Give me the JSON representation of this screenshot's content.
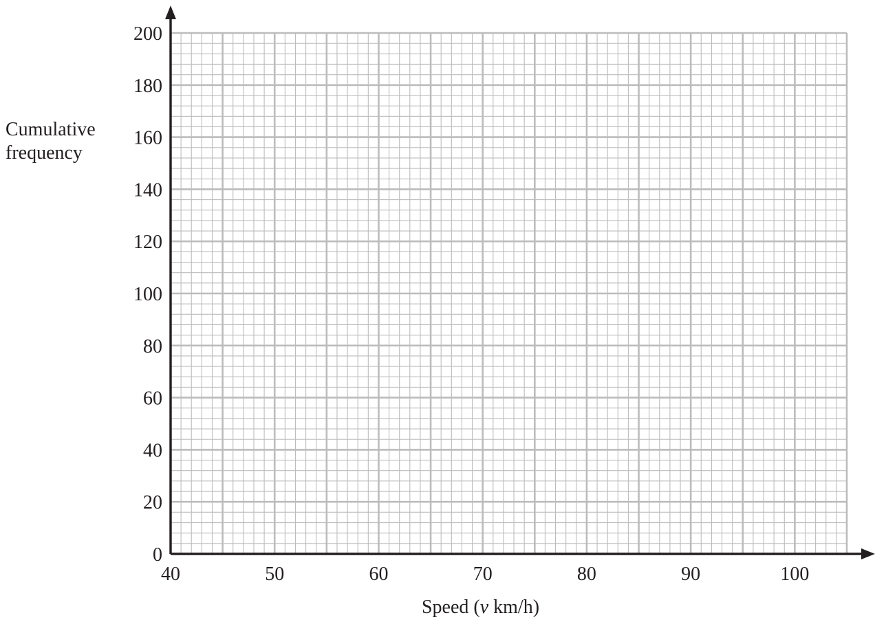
{
  "chart_data": {
    "type": "line",
    "title": "",
    "xlabel": "Speed (v km/h)",
    "xlabel_parts": {
      "prefix": "Speed (",
      "variable": "v",
      "suffix": " km/h)"
    },
    "ylabel": "Cumulative\nfrequency",
    "xlim": [
      40,
      105
    ],
    "ylim": [
      0,
      200
    ],
    "x_ticks": [
      40,
      50,
      60,
      70,
      80,
      90,
      100
    ],
    "y_ticks": [
      0,
      20,
      40,
      60,
      80,
      100,
      120,
      140,
      160,
      180,
      200
    ],
    "grid": true,
    "x_minor_step": 1,
    "y_minor_step": 4,
    "series": [],
    "colors": {
      "grid": "#bcbcbc",
      "axis": "#231f20",
      "text": "#231f20"
    }
  }
}
